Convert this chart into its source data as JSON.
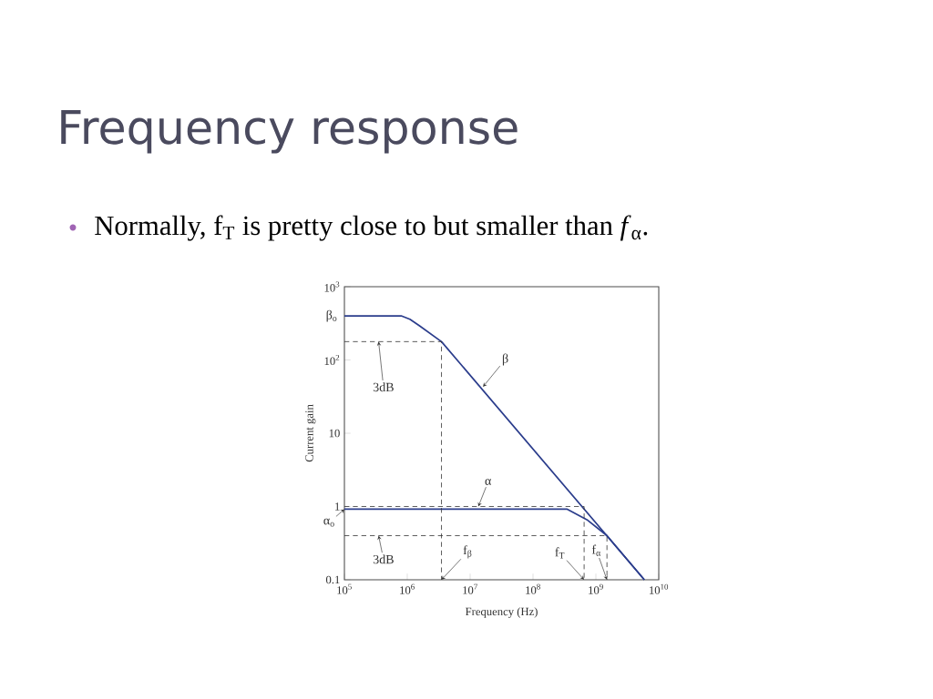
{
  "chart_data": {
    "type": "line",
    "title": "Frequency response",
    "subtitle": "Normally, f$_{T}$ is pretty close to but smaller than *f*$_{α}$.",
    "xlabel": "Frequency (Hz)",
    "ylabel": "Current gain",
    "log": "xy",
    "xlim": [
      100000,
      10000000000
    ],
    "ylim": [
      0.1,
      1000
    ],
    "xticks": [
      {
        "value": 100000,
        "label": "10$^{5}$"
      },
      {
        "value": 1000000,
        "label": "10$^{6}$"
      },
      {
        "value": 10000000,
        "label": "10$^{7}$"
      },
      {
        "value": 100000000,
        "label": "10$^{8}$"
      },
      {
        "value": 1000000000,
        "label": "10$^{9}$"
      },
      {
        "value": 10000000000,
        "label": "10$^{10}$"
      }
    ],
    "yticks": [
      0.1,
      1,
      10,
      {
        "value": 100,
        "label": "10$^{2}$"
      },
      {
        "value": 1000,
        "label": "10$^{3}$"
      }
    ],
    "grid": false,
    "marker": "none",
    "series": [
      {
        "color": "#2b3d8c",
        "line_style": "solid",
        "x": [
          100000,
          800000,
          1100000,
          1550000,
          3500000,
          5900000000
        ],
        "values": [
          400,
          400,
          360,
          295,
          178,
          0.1
        ]
      },
      {
        "color": "#2b3d8c",
        "line_style": "solid",
        "x": [
          100000,
          350000000,
          740000000,
          1500000000,
          5900000000
        ],
        "values": [
          0.92,
          0.92,
          0.65,
          0.4,
          0.1
        ]
      },
      {
        "color": "#333333",
        "line_style": "dashed",
        "x": [
          100000,
          3500000,
          3500000
        ],
        "values": [
          178,
          178,
          0.1
        ]
      },
      {
        "color": "#333333",
        "line_style": "dashed",
        "x": [
          100000,
          650000000,
          650000000
        ],
        "values": [
          1,
          1,
          0.1
        ]
      },
      {
        "color": "#333333",
        "line_style": "dashed",
        "x": [
          100000,
          1500000000,
          1500000000
        ],
        "values": [
          0.4,
          0.4,
          0.1
        ]
      }
    ],
    "annotations": [
      {
        "text": "β$_{o}$",
        "x": 100000,
        "y": 400
      },
      {
        "text": "3dB",
        "x": 350000,
        "y": 178
      },
      {
        "text": "β",
        "x": 16000000,
        "y": 43
      },
      {
        "text": "α",
        "x": 13500000,
        "y": 1
      },
      {
        "text": "α$_{o}$",
        "x": 100000,
        "y": 0.92
      },
      {
        "text": "3dB",
        "x": 350000,
        "y": 0.4
      },
      {
        "text": "f$_{β}$",
        "x": 3500000,
        "y": 0.1
      },
      {
        "text": "f$_{T}$",
        "x": 650000000,
        "y": 0.1
      },
      {
        "text": "f$_{α}$",
        "x": 1500000000,
        "y": 0.1
      }
    ]
  }
}
